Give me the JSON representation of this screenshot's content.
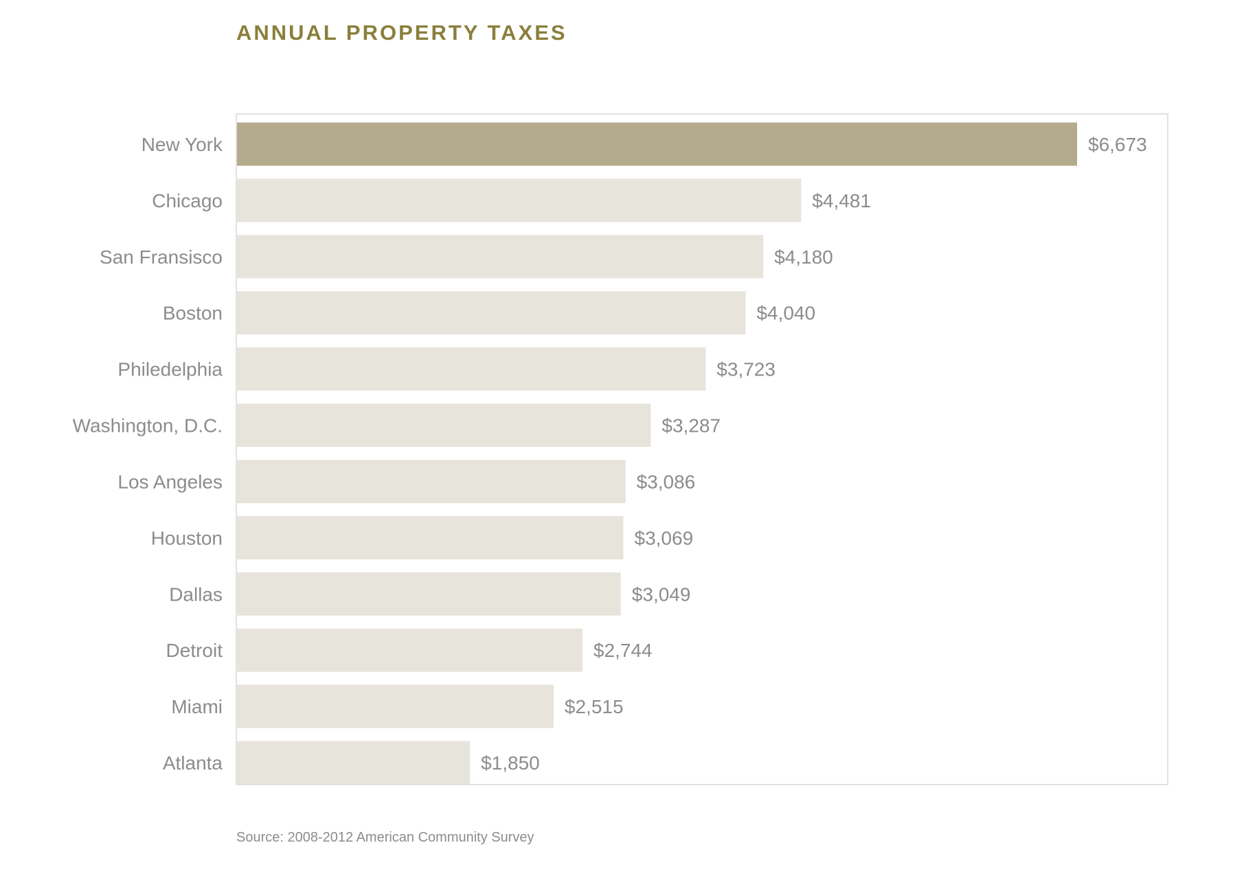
{
  "chart_data": {
    "type": "bar",
    "orientation": "horizontal",
    "title": "ANNUAL PROPERTY TAXES",
    "source": "Source: 2008-2012 American Community Survey",
    "categories": [
      "New York",
      "Chicago",
      "San Fransisco",
      "Boston",
      "Philedelphia",
      "Washington, D.C.",
      "Los Angeles",
      "Houston",
      "Dallas",
      "Detroit",
      "Miami",
      "Atlanta"
    ],
    "values": [
      6673,
      4481,
      4180,
      4040,
      3723,
      3287,
      3086,
      3069,
      3049,
      2744,
      2515,
      1850
    ],
    "value_labels": [
      "$6,673",
      "$4,481",
      "$4,180",
      "$4,040",
      "$3,723",
      "$3,287",
      "$3,086",
      "$3,069",
      "$3,049",
      "$2,744",
      "$2,515",
      "$1,850"
    ],
    "xlim": [
      0,
      6673
    ],
    "highlight_index": 0,
    "xlabel": "",
    "ylabel": "",
    "grid": false,
    "legend": "none"
  },
  "colors": {
    "title": "#8a7f3c",
    "highlight_bar": "#b3ab8b",
    "bar": "#e7e4dc",
    "category_label": "#8c8c8c",
    "value_label": "#8c8c8c",
    "frame": "#e2e2e2"
  }
}
